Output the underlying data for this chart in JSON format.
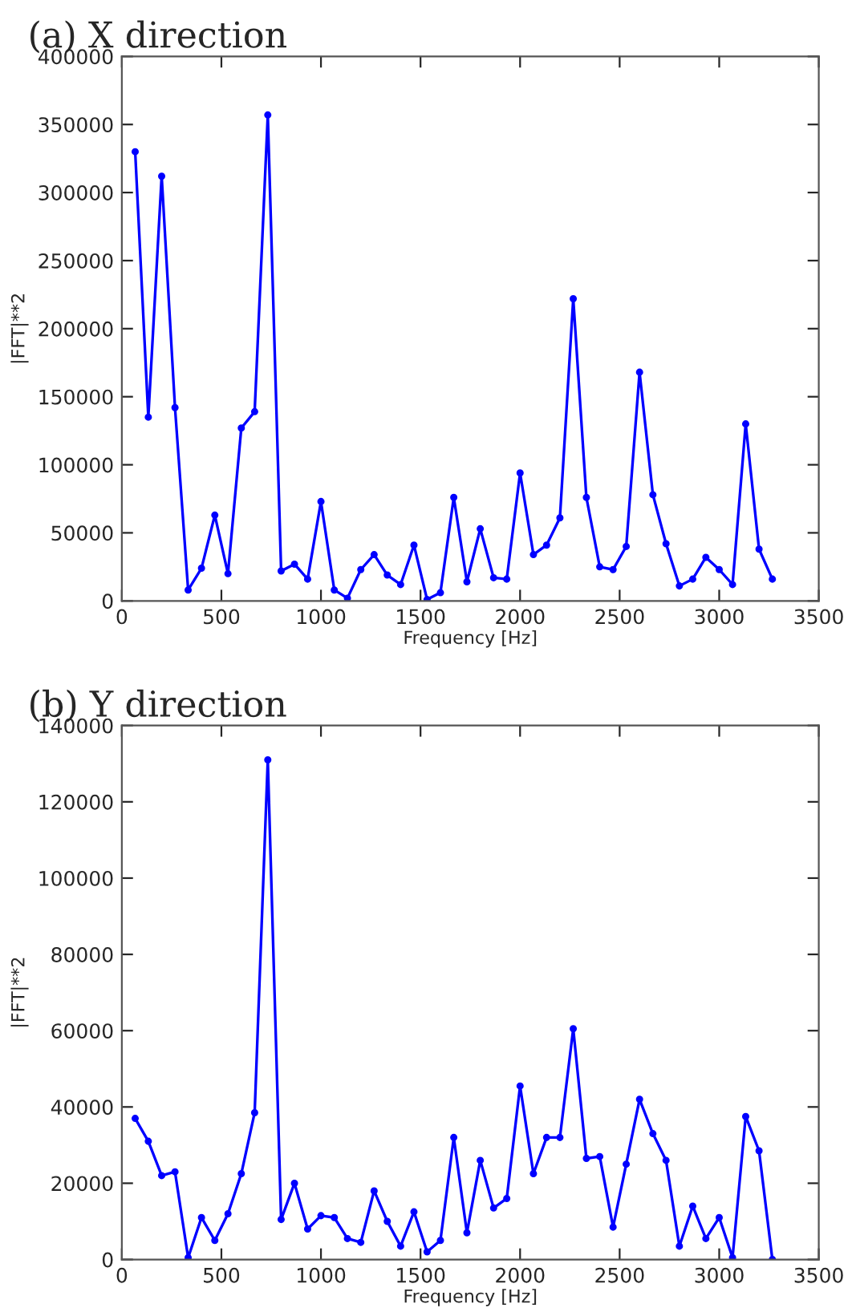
{
  "chart_data": [
    {
      "type": "line",
      "title": "(a) X direction",
      "xlabel": "Frequency [Hz]",
      "ylabel": "|FFT|**2",
      "x": [
        67,
        133,
        200,
        267,
        333,
        400,
        467,
        533,
        600,
        667,
        733,
        800,
        867,
        933,
        1000,
        1067,
        1133,
        1200,
        1267,
        1333,
        1400,
        1467,
        1533,
        1600,
        1667,
        1733,
        1800,
        1867,
        1933,
        2000,
        2067,
        2133,
        2200,
        2267,
        2333,
        2400,
        2467,
        2533,
        2600,
        2667,
        2733,
        2800,
        2867,
        2933,
        3000,
        3067,
        3133,
        3200,
        3267
      ],
      "series": [
        {
          "color": "#0000ff",
          "values": [
            330000,
            135000,
            312000,
            142000,
            8000,
            24000,
            63000,
            20000,
            127000,
            139000,
            357000,
            22000,
            27000,
            16000,
            73000,
            8000,
            2000,
            23000,
            34000,
            19000,
            12000,
            41000,
            1000,
            6000,
            76000,
            14000,
            53000,
            17000,
            16000,
            94000,
            34000,
            41000,
            61000,
            222000,
            76000,
            25000,
            23000,
            40000,
            168000,
            78000,
            42000,
            11000,
            16000,
            32000,
            23000,
            12000,
            130000,
            38000,
            16000
          ]
        }
      ],
      "xlim": [
        0,
        3500
      ],
      "xticks": [
        0,
        500,
        1000,
        1500,
        2000,
        2500,
        3000,
        3500
      ],
      "ylim": [
        0,
        400000
      ],
      "yticks": [
        0,
        50000,
        100000,
        150000,
        200000,
        250000,
        300000,
        350000,
        400000
      ],
      "marker": "circle",
      "line_style": "solid",
      "grid": false
    },
    {
      "type": "line",
      "title": "(b) Y direction",
      "xlabel": "Frequency [Hz]",
      "ylabel": "|FFT|**2",
      "x": [
        67,
        133,
        200,
        267,
        333,
        400,
        467,
        533,
        600,
        667,
        733,
        800,
        867,
        933,
        1000,
        1067,
        1133,
        1200,
        1267,
        1333,
        1400,
        1467,
        1533,
        1600,
        1667,
        1733,
        1800,
        1867,
        1933,
        2000,
        2067,
        2133,
        2200,
        2267,
        2333,
        2400,
        2467,
        2533,
        2600,
        2667,
        2733,
        2800,
        2867,
        2933,
        3000,
        3067,
        3133,
        3200,
        3267
      ],
      "series": [
        {
          "color": "#0000ff",
          "values": [
            37000,
            31000,
            22000,
            23000,
            500,
            11000,
            5000,
            12000,
            22500,
            38500,
            131000,
            10500,
            20000,
            8000,
            11500,
            11000,
            5500,
            4500,
            18000,
            10000,
            3500,
            12500,
            2000,
            5000,
            32000,
            7000,
            26000,
            13500,
            16000,
            45500,
            22500,
            32000,
            32000,
            60500,
            26500,
            27000,
            8500,
            25000,
            42000,
            33000,
            26000,
            3500,
            14000,
            5500,
            11000,
            500,
            37500,
            28500,
            0
          ]
        }
      ],
      "xlim": [
        0,
        3500
      ],
      "xticks": [
        0,
        500,
        1000,
        1500,
        2000,
        2500,
        3000,
        3500
      ],
      "ylim": [
        0,
        140000
      ],
      "yticks": [
        0,
        20000,
        40000,
        60000,
        80000,
        100000,
        120000,
        140000
      ],
      "marker": "circle",
      "line_style": "solid",
      "grid": false
    }
  ]
}
